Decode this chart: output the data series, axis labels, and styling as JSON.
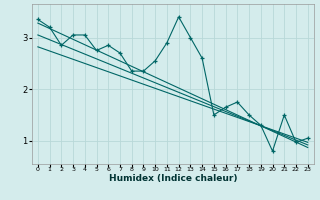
{
  "xlabel": "Humidex (Indice chaleur)",
  "bg_color": "#d4ecec",
  "grid_color": "#b8d8d8",
  "line_color": "#006666",
  "xlim": [
    -0.5,
    23.5
  ],
  "ylim": [
    0.55,
    3.65
  ],
  "yticks": [
    1,
    2,
    3
  ],
  "xticks": [
    0,
    1,
    2,
    3,
    4,
    5,
    6,
    7,
    8,
    9,
    10,
    11,
    12,
    13,
    14,
    15,
    16,
    17,
    18,
    19,
    20,
    21,
    22,
    23
  ],
  "zigzag_x": [
    0,
    1,
    2,
    3,
    4,
    5,
    6,
    7,
    8,
    9,
    10,
    11,
    12,
    13,
    14,
    15,
    16,
    17,
    18,
    19,
    20,
    21,
    22,
    23
  ],
  "zigzag_y": [
    3.35,
    3.2,
    2.85,
    3.05,
    3.05,
    2.75,
    2.85,
    2.7,
    2.35,
    2.35,
    2.55,
    2.9,
    3.4,
    3.0,
    2.6,
    1.5,
    1.65,
    1.75,
    1.5,
    1.3,
    0.8,
    1.5,
    0.97,
    1.05
  ],
  "trend1_x": [
    0,
    23
  ],
  "trend1_y": [
    3.28,
    0.87
  ],
  "trend2_x": [
    0,
    23
  ],
  "trend2_y": [
    2.82,
    0.97
  ],
  "trend3_x": [
    0,
    23
  ],
  "trend3_y": [
    3.05,
    0.92
  ]
}
